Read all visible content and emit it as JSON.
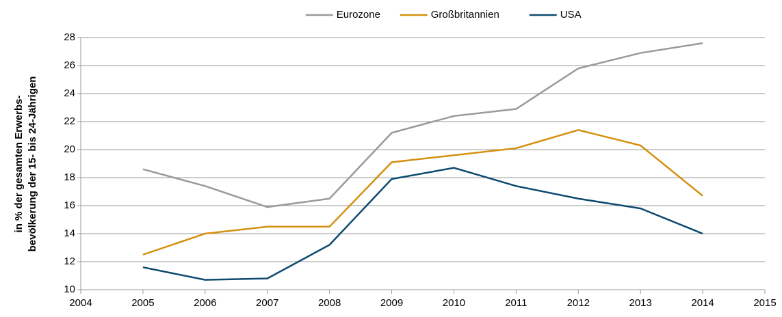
{
  "chart_data": {
    "type": "line",
    "ylabel": [
      "in % der gesamten Erwerbs-",
      "bevölkerung der 15- bis 24-Jährigen"
    ],
    "x": [
      2005,
      2006,
      2007,
      2008,
      2009,
      2010,
      2011,
      2012,
      2013,
      2014
    ],
    "series": [
      {
        "name": "Eurozone",
        "color": "#999999",
        "values": [
          18.6,
          17.4,
          15.9,
          16.5,
          21.2,
          22.4,
          22.9,
          25.8,
          26.9,
          27.6
        ]
      },
      {
        "name": "Großbritannien",
        "color": "#d4900f",
        "values": [
          12.5,
          14.0,
          14.5,
          14.5,
          19.1,
          19.6,
          20.1,
          21.4,
          20.3,
          16.7
        ]
      },
      {
        "name": "USA",
        "color": "#0d4a6e",
        "values": [
          11.6,
          10.7,
          10.8,
          13.2,
          17.9,
          18.7,
          17.4,
          16.5,
          15.8,
          14.0
        ]
      }
    ],
    "xlim": [
      2004,
      2015
    ],
    "xticks": [
      2004,
      2005,
      2006,
      2007,
      2008,
      2009,
      2010,
      2011,
      2012,
      2013,
      2014,
      2015
    ],
    "ylim": [
      10,
      28
    ],
    "yticks": [
      10,
      12,
      14,
      16,
      18,
      20,
      22,
      24,
      26,
      28
    ],
    "grid": true,
    "legend": "top"
  }
}
